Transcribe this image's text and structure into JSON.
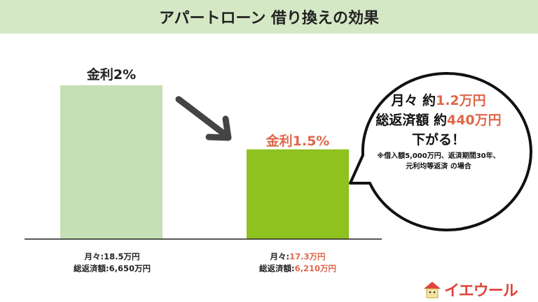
{
  "title": "アパートローン 借り換えの効果",
  "chart_data": {
    "type": "bar",
    "categories": [
      "金利2%",
      "金利1.5%"
    ],
    "values": [
      2,
      1.5
    ],
    "ylim": [
      0.8,
      2.0
    ],
    "colors": [
      "#c5e0b4",
      "#8dc21f"
    ],
    "bar_labels": [
      "金利2%",
      "金利1.5%"
    ],
    "details": [
      {
        "monthly_label": "月々:",
        "monthly_value": "18.5万円",
        "total_label": "総返済額:",
        "total_value": "6,650万円"
      },
      {
        "monthly_label": "月々:",
        "monthly_value": "17.3万円",
        "total_label": "総返済額:",
        "total_value": "6,210万円"
      }
    ]
  },
  "bubble": {
    "line1_prefix": "月々 約",
    "line1_value": "1.2万円",
    "line2_prefix": "総返済額 約",
    "line2_value": "440万円",
    "line3": "下がる！",
    "note1": "※借入額5,000万円、返済期間30年、",
    "note2": "元利均等返済 の場合"
  },
  "logo": {
    "text": "イエウール"
  },
  "accent": "#e0664a"
}
